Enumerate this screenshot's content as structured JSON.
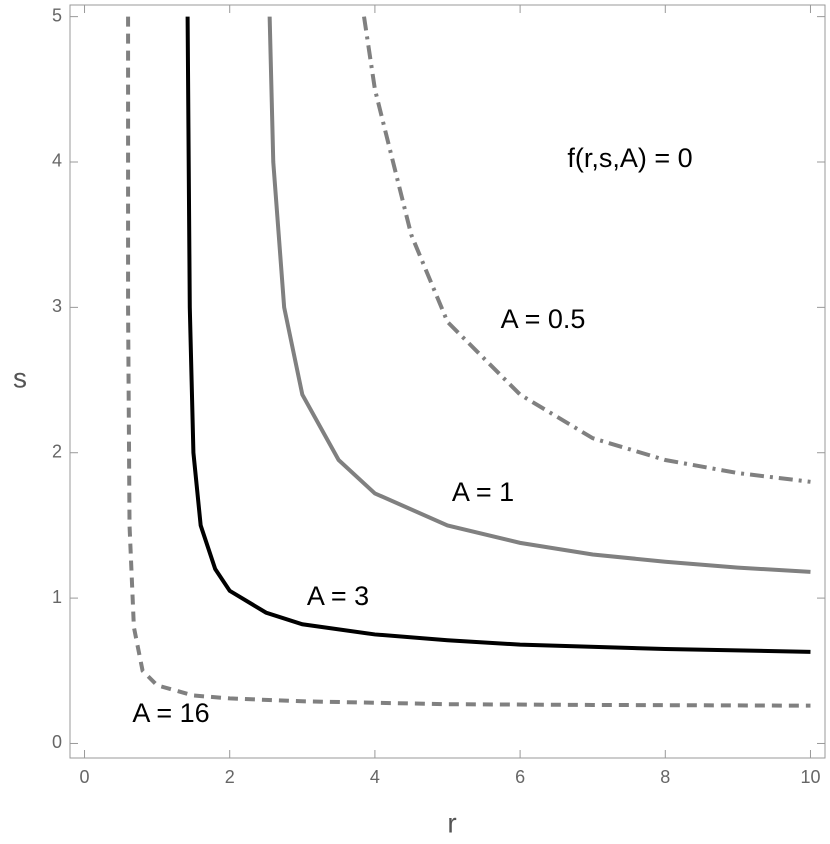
{
  "chart_data": {
    "type": "line",
    "xlabel": "r",
    "ylabel": "s",
    "xlim": [
      -0.2,
      10.2
    ],
    "ylim": [
      -0.1,
      5.08
    ],
    "xticks": [
      0,
      2,
      4,
      6,
      8,
      10
    ],
    "yticks": [
      0,
      1,
      2,
      3,
      4,
      5
    ],
    "annotations": [
      "f(r,s,A) = 0",
      "A = 0.5",
      "A = 1",
      "A = 3",
      "A = 16"
    ],
    "series": [
      {
        "color": "#808080",
        "dash": "dashed",
        "x": [
          0.6,
          0.6,
          0.62,
          0.68,
          0.8,
          1,
          1.5,
          2,
          3,
          5,
          7,
          10
        ],
        "values": [
          5,
          3,
          1.5,
          0.8,
          0.5,
          0.4,
          0.33,
          0.31,
          0.29,
          0.27,
          0.265,
          0.26
        ]
      },
      {
        "color": "#000000",
        "dash": "solid",
        "x": [
          1.42,
          1.45,
          1.5,
          1.6,
          1.8,
          2,
          2.5,
          3,
          4,
          5,
          6,
          8,
          10
        ],
        "values": [
          5,
          3,
          2,
          1.5,
          1.2,
          1.05,
          0.9,
          0.82,
          0.75,
          0.71,
          0.68,
          0.65,
          0.63
        ]
      },
      {
        "color": "#808080",
        "dash": "solid",
        "x": [
          2.55,
          2.6,
          2.75,
          3,
          3.5,
          4,
          5,
          6,
          7,
          8,
          9,
          10
        ],
        "values": [
          5,
          4,
          3,
          2.4,
          1.95,
          1.72,
          1.5,
          1.38,
          1.3,
          1.25,
          1.21,
          1.18
        ]
      },
      {
        "color": "#808080",
        "dash": "dashdot",
        "x": [
          3.85,
          4,
          4.5,
          5,
          6,
          7,
          8,
          9,
          10
        ],
        "values": [
          5,
          4.5,
          3.5,
          2.9,
          2.4,
          2.1,
          1.95,
          1.86,
          1.8
        ]
      }
    ]
  }
}
